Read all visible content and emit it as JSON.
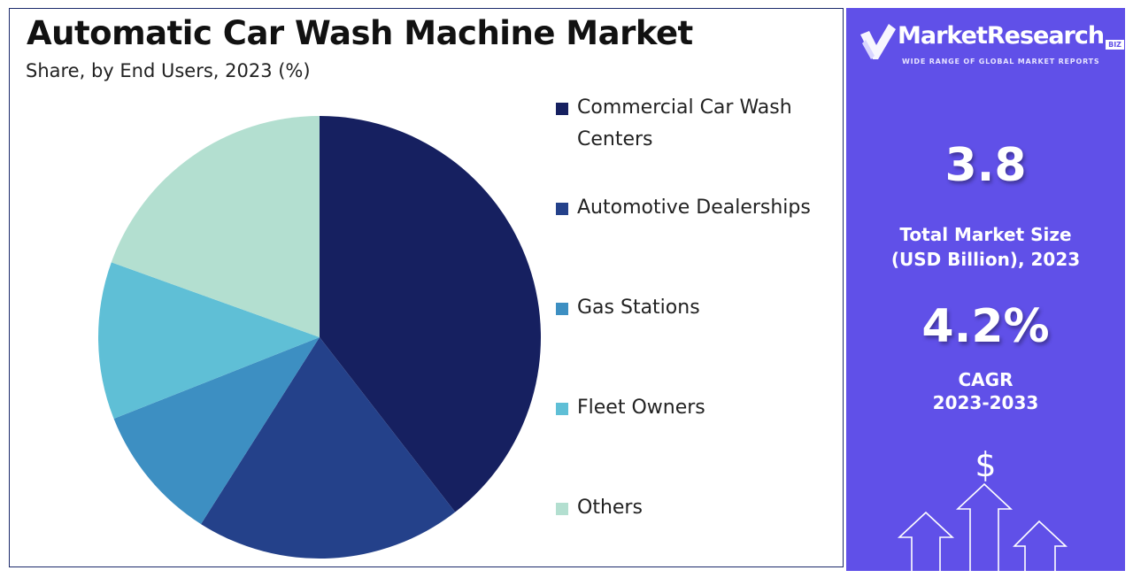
{
  "title": "Automatic Car Wash Machine Market",
  "subtitle": "Share, by End Users, 2023 (%)",
  "chart_data": {
    "type": "pie",
    "title": "Automatic Car Wash Machine Market",
    "subtitle": "Share, by End Users, 2023 (%)",
    "start_angle_deg": 0,
    "direction": "clockwise",
    "legend_position": "right",
    "slices": [
      {
        "label": "Commercial Car Wash Centers",
        "value": 39.5,
        "color": "#162060"
      },
      {
        "label": "Automotive Dealerships",
        "value": 19.5,
        "color": "#24418a"
      },
      {
        "label": "Gas Stations",
        "value": 10.0,
        "color": "#3d8fc2"
      },
      {
        "label": "Fleet Owners",
        "value": 11.5,
        "color": "#5fbfd6"
      },
      {
        "label": "Others",
        "value": 19.5,
        "color": "#b3dfd0"
      }
    ]
  },
  "sidebar": {
    "brand_name": "MarketResearch",
    "brand_suffix": "BIZ",
    "tagline": "WIDE RANGE OF GLOBAL MARKET REPORTS",
    "market_size_value": "3.8",
    "market_size_label_line1": "Total Market Size",
    "market_size_label_line2": "(USD Billion), 2023",
    "cagr_value": "4.2%",
    "cagr_label_line1": "CAGR",
    "cagr_label_line2": "2023-2033",
    "dollar_symbol": "$",
    "background_color": "#6050e8"
  }
}
